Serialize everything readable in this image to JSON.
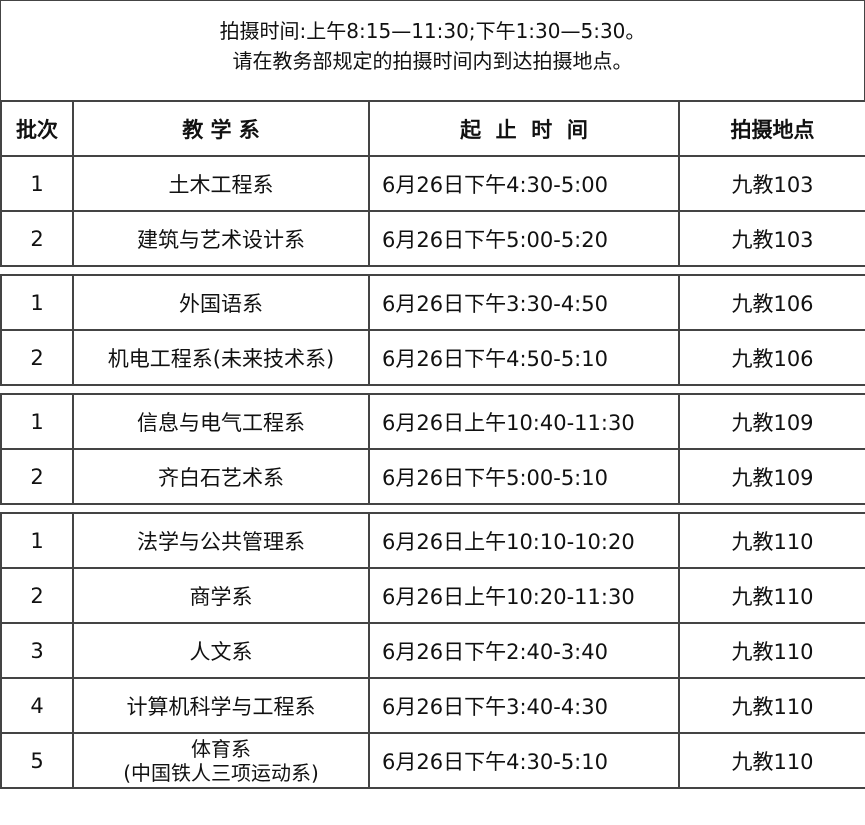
{
  "notice": {
    "line1": "拍摄时间:上午8:15—11:30;下午1:30—5:30。",
    "line2": "请在教务部规定的拍摄时间内到达拍摄地点。"
  },
  "headers": [
    "批次",
    "教 学 系",
    "起  止  时  间",
    "拍摄地点"
  ],
  "groups": [
    [
      {
        "batch": "1",
        "dept": "土木工程系",
        "time": "6月26日下午4:30-5:00",
        "place": "九教103"
      },
      {
        "batch": "2",
        "dept": "建筑与艺术设计系",
        "time": "6月26日下午5:00-5:20",
        "place": "九教103"
      }
    ],
    [
      {
        "batch": "1",
        "dept": "外国语系",
        "time": "6月26日下午3:30-4:50",
        "place": "九教106"
      },
      {
        "batch": "2",
        "dept": "机电工程系(未来技术系)",
        "time": "6月26日下午4:50-5:10",
        "place": "九教106"
      }
    ],
    [
      {
        "batch": "1",
        "dept": "信息与电气工程系",
        "time": "6月26日上午10:40-11:30",
        "place": "九教109"
      },
      {
        "batch": "2",
        "dept": "齐白石艺术系",
        "time": "6月26日下午5:00-5:10",
        "place": "九教109"
      }
    ],
    [
      {
        "batch": "1",
        "dept": "法学与公共管理系",
        "time": "6月26日上午10:10-10:20",
        "place": "九教110"
      },
      {
        "batch": "2",
        "dept": "商学系",
        "time": "6月26日上午10:20-11:30",
        "place": "九教110"
      },
      {
        "batch": "3",
        "dept": "人文系",
        "time": "6月26日下午2:40-3:40",
        "place": "九教110"
      },
      {
        "batch": "4",
        "dept": "计算机科学与工程系",
        "time": "6月26日下午3:40-4:30",
        "place": "九教110"
      },
      {
        "batch": "5",
        "dept": "体育系",
        "dept_line2": "(中国铁人三项运动系)",
        "time": "6月26日下午4:30-5:10",
        "place": "九教110"
      }
    ]
  ]
}
